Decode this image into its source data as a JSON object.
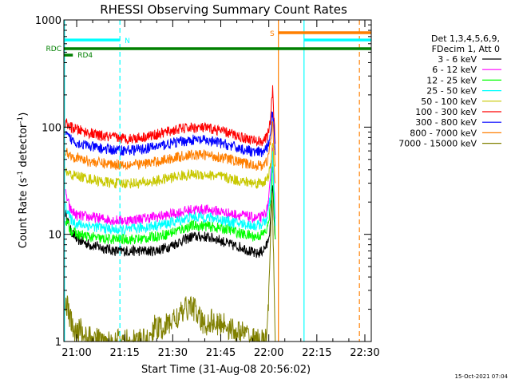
{
  "chart_data": {
    "type": "line",
    "title": "RHESSI Observing Summary Count Rates",
    "xlabel": "Start Time (31-Aug-08 20:56:02)",
    "ylabel_main": "Count Rate (s",
    "ylabel_sup1": "-1",
    "ylabel_mid": " detector",
    "ylabel_sup2": "-1",
    "ylabel_end": ")",
    "x_unit": "minutes after 20:56:02",
    "xlim": [
      0,
      96
    ],
    "ylim": [
      1,
      1000
    ],
    "yscale": "log",
    "x_ticks": [
      {
        "x": 4,
        "label": "21:00"
      },
      {
        "x": 19,
        "label": "21:15"
      },
      {
        "x": 34,
        "label": "21:30"
      },
      {
        "x": 49,
        "label": "21:45"
      },
      {
        "x": 64,
        "label": "22:00"
      },
      {
        "x": 79,
        "label": "22:15"
      },
      {
        "x": 94,
        "label": "22:30"
      }
    ],
    "y_ticks": [
      {
        "y": 1,
        "label": "1"
      },
      {
        "y": 10,
        "label": "10"
      },
      {
        "y": 100,
        "label": "100"
      },
      {
        "y": 1000,
        "label": "1000"
      }
    ],
    "legend_header": [
      "Det 1,3,4,5,6,9,",
      "FDecim 1, Att 0"
    ],
    "legend_position": "right",
    "series": [
      {
        "name": "3 - 6 keV",
        "color": "#000000",
        "x": [
          0.5,
          2,
          4,
          8,
          12,
          16,
          20,
          24,
          28,
          32,
          36,
          40,
          44,
          48,
          52,
          56,
          60,
          62,
          63.5,
          64.5,
          65.2,
          66
        ],
        "y": [
          16,
          11,
          9,
          8,
          7.5,
          7,
          7,
          7,
          7,
          7.5,
          8.5,
          9.5,
          9.5,
          9,
          8,
          7.5,
          6.5,
          7,
          8,
          12,
          30,
          9
        ]
      },
      {
        "name": "6 - 12 keV",
        "color": "#ff00ff",
        "x": [
          0.5,
          2,
          4,
          8,
          12,
          16,
          20,
          24,
          28,
          32,
          36,
          40,
          44,
          48,
          52,
          56,
          60,
          62,
          63.5,
          64.5,
          65.2,
          66
        ],
        "y": [
          24,
          17,
          15,
          14.5,
          14,
          13.5,
          13.5,
          14,
          14.5,
          15,
          16,
          17,
          17,
          16.5,
          15.5,
          15,
          14,
          14.5,
          17,
          30,
          70,
          14
        ]
      },
      {
        "name": "12 - 25 keV",
        "color": "#00ff00",
        "x": [
          0.5,
          2,
          4,
          8,
          12,
          16,
          20,
          24,
          28,
          32,
          36,
          40,
          44,
          48,
          52,
          56,
          60,
          62,
          63.5,
          64.5,
          65.2,
          66
        ],
        "y": [
          14,
          11,
          10,
          9.5,
          9,
          9,
          9,
          9,
          9.5,
          10,
          11,
          12,
          12,
          11.5,
          11,
          10,
          9.5,
          10,
          11,
          18,
          45,
          9
        ]
      },
      {
        "name": "25 - 50 keV",
        "color": "#00ffff",
        "x": [
          0.5,
          2,
          4,
          8,
          12,
          16,
          20,
          24,
          28,
          32,
          36,
          40,
          44,
          48,
          52,
          56,
          60,
          62,
          63.5,
          64.5,
          65.2,
          66
        ],
        "y": [
          19,
          14,
          12.5,
          12,
          11.5,
          11,
          11,
          11.5,
          12,
          12.5,
          13.5,
          14.5,
          14.5,
          14,
          13,
          12.5,
          12,
          12.5,
          14,
          22,
          55,
          12
        ]
      },
      {
        "name": "50 - 100 keV",
        "color": "#c8c800",
        "x": [
          0.5,
          2,
          4,
          8,
          12,
          16,
          20,
          24,
          28,
          32,
          36,
          40,
          44,
          48,
          52,
          56,
          60,
          62,
          63.5,
          64.5,
          65.2,
          66
        ],
        "y": [
          38,
          36,
          35,
          33,
          31,
          30,
          30,
          30,
          31,
          33,
          35,
          36,
          36,
          35,
          33,
          31,
          30,
          30.5,
          32,
          42,
          70,
          30
        ]
      },
      {
        "name": "100 - 300 keV",
        "color": "#ff0000",
        "x": [
          0.5,
          2,
          4,
          8,
          12,
          16,
          20,
          24,
          28,
          32,
          36,
          40,
          44,
          48,
          52,
          56,
          60,
          62,
          63.5,
          64.5,
          65.2,
          66
        ],
        "y": [
          110,
          100,
          95,
          88,
          82,
          80,
          78,
          80,
          84,
          90,
          96,
          99,
          98,
          94,
          87,
          80,
          74,
          74,
          80,
          120,
          220,
          70
        ]
      },
      {
        "name": "300 - 800 keV",
        "color": "#0000ff",
        "x": [
          0.5,
          2,
          4,
          8,
          12,
          16,
          20,
          24,
          28,
          32,
          36,
          40,
          44,
          48,
          52,
          56,
          60,
          62,
          63.5,
          64.5,
          65.2,
          66
        ],
        "y": [
          85,
          78,
          72,
          66,
          63,
          61,
          61,
          62,
          65,
          69,
          73,
          76,
          75,
          72,
          67,
          62,
          58,
          58,
          63,
          90,
          150,
          55
        ]
      },
      {
        "name": "800 - 7000 keV",
        "color": "#ff7f00",
        "x": [
          0.5,
          2,
          4,
          8,
          12,
          16,
          20,
          24,
          28,
          32,
          36,
          40,
          44,
          48,
          52,
          56,
          60,
          62,
          63.5,
          64.5,
          65.2,
          66
        ],
        "y": [
          60,
          55,
          52,
          48,
          46,
          45,
          45,
          45,
          47,
          50,
          53,
          55,
          55,
          53,
          50,
          46,
          44,
          44,
          48,
          70,
          110,
          43
        ]
      },
      {
        "name": "7000 - 15000 keV",
        "color": "#808000",
        "x": [
          0.5,
          2,
          3,
          4,
          5,
          6,
          12,
          18,
          24,
          27,
          28,
          30,
          32,
          34,
          36,
          38,
          40,
          42,
          44,
          46,
          48,
          50,
          52,
          54,
          56,
          58,
          60,
          62,
          63,
          64,
          64.5,
          65,
          65.5,
          66
        ],
        "y": [
          2.5,
          1.6,
          1.3,
          1.1,
          1.4,
          1.1,
          1,
          1,
          1,
          1,
          1.4,
          1.3,
          1.4,
          1.6,
          1.7,
          2.0,
          2.2,
          1.7,
          1.4,
          1.6,
          1.4,
          1.5,
          1.3,
          1.2,
          1.2,
          1.1,
          1.0,
          1.0,
          1.0,
          2.5,
          8,
          25,
          6,
          1.0
        ]
      }
    ],
    "events": [
      {
        "type": "night_bar",
        "label": "N",
        "color": "#00ffff",
        "x_start": 0,
        "x_end": 17.5,
        "y": 650
      },
      {
        "type": "night_bar",
        "label": "",
        "color": "#00ffff",
        "x_start": 75,
        "x_end": 96,
        "y": 650
      },
      {
        "type": "saa_bar",
        "label": "S",
        "color": "#ff7f00",
        "x_start": 67,
        "x_end": 96,
        "y": 760
      },
      {
        "type": "rd_bar",
        "label": "RDC",
        "color": "#008000",
        "x_start": 0,
        "x_end": 96,
        "y": 540
      },
      {
        "type": "rd_bar",
        "label": "RD4",
        "color": "#008000",
        "x_start": 0,
        "x_end": 2.8,
        "y": 470
      }
    ],
    "vlines": [
      {
        "x": 0.2,
        "color": "#00ffff",
        "style": "solid"
      },
      {
        "x": 17.5,
        "color": "#00ffff",
        "style": "dashed"
      },
      {
        "x": 67,
        "color": "#ff7f00",
        "style": "solid"
      },
      {
        "x": 75,
        "color": "#00ffff",
        "style": "solid"
      },
      {
        "x": 92.3,
        "color": "#ff7f00",
        "style": "dashed"
      }
    ],
    "footer": "15-Oct-2021 07:04"
  }
}
